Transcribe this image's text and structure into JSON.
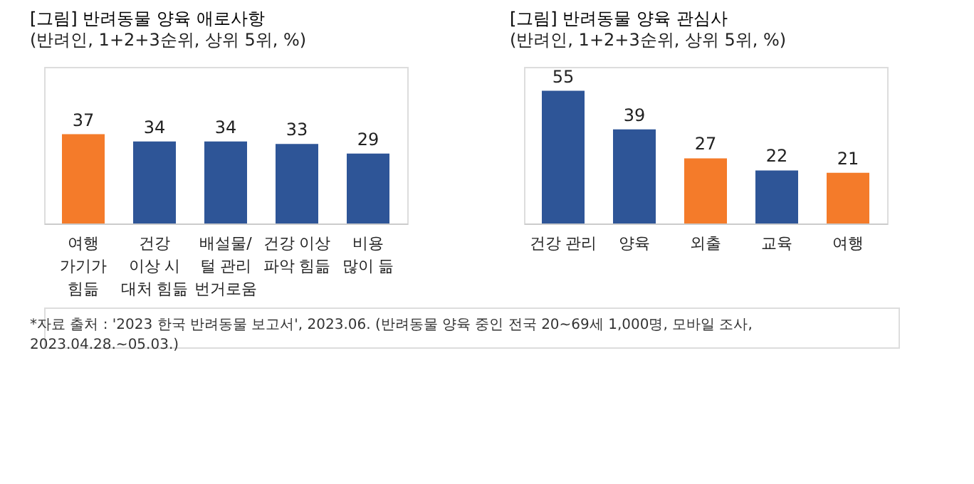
{
  "chart_data": [
    {
      "type": "bar",
      "title": "[그림] 반려동물 양육 애로사항",
      "subtitle": "(반려인, 1+2+3순위, 상위 5위, %)",
      "categories": [
        "여행\n가기가\n힘듦",
        "건강\n이상 시\n대처 힘듦",
        "배설물/\n털 관리\n번거로움",
        "건강 이상\n파악 힘듦",
        "비용\n많이 듦"
      ],
      "values": [
        37,
        34,
        34,
        33,
        29
      ],
      "colors": [
        "#f47b2a",
        "#2e5597",
        "#2e5597",
        "#2e5597",
        "#2e5597"
      ],
      "data_labels": true,
      "tick_labels": "x",
      "grid": false,
      "annotations": [
        "*자료 출처 : '2023 한국 반려동물 보고서', 2023.06. (반려동물 양육 중인 전국 20~69세 1,000명, 모바일 조사, 2023.04.28.~05.03.)"
      ]
    },
    {
      "type": "bar",
      "title": "[그림] 반려동물 양육 관심사",
      "subtitle": "(반려인, 1+2+3순위, 상위 5위, %)",
      "categories": [
        "건강 관리",
        "양육",
        "외출",
        "교육",
        "여행"
      ],
      "values": [
        55,
        39,
        27,
        22,
        21
      ],
      "colors": [
        "#2e5597",
        "#2e5597",
        "#f47b2a",
        "#2e5597",
        "#f47b2a"
      ],
      "data_labels": true,
      "tick_labels": "x",
      "grid": false
    }
  ]
}
